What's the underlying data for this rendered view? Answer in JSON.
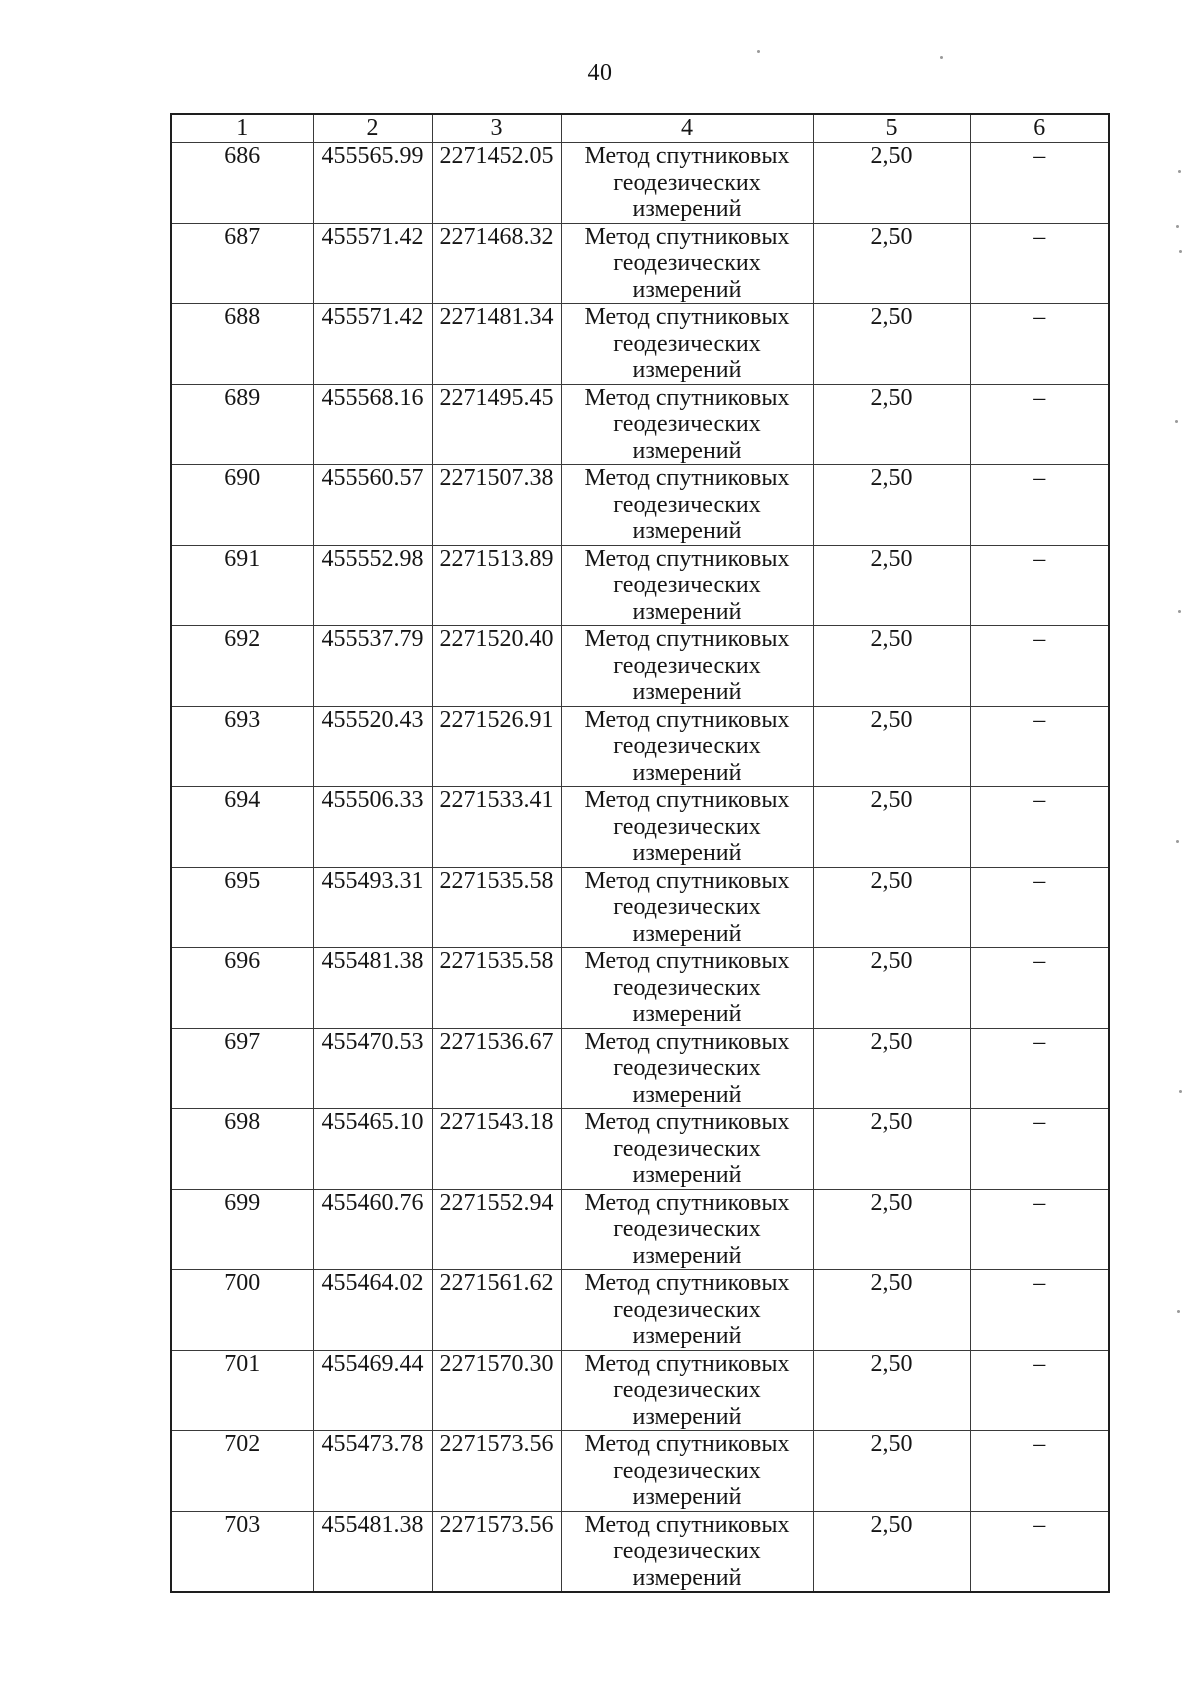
{
  "page": {
    "number": "40"
  },
  "table": {
    "headers": [
      "1",
      "2",
      "3",
      "4",
      "5",
      "6"
    ],
    "method_full": "Метод спутниковых геодезических измерений",
    "method_lines": [
      "Метод спутниковых",
      "геодезических",
      "измерений"
    ],
    "rows": [
      {
        "n": "686",
        "x": "455565.99",
        "y": "2271452.05",
        "accuracy": "2,50",
        "mark": "–"
      },
      {
        "n": "687",
        "x": "455571.42",
        "y": "2271468.32",
        "accuracy": "2,50",
        "mark": "–"
      },
      {
        "n": "688",
        "x": "455571.42",
        "y": "2271481.34",
        "accuracy": "2,50",
        "mark": "–"
      },
      {
        "n": "689",
        "x": "455568.16",
        "y": "2271495.45",
        "accuracy": "2,50",
        "mark": "–"
      },
      {
        "n": "690",
        "x": "455560.57",
        "y": "2271507.38",
        "accuracy": "2,50",
        "mark": "–"
      },
      {
        "n": "691",
        "x": "455552.98",
        "y": "2271513.89",
        "accuracy": "2,50",
        "mark": "–"
      },
      {
        "n": "692",
        "x": "455537.79",
        "y": "2271520.40",
        "accuracy": "2,50",
        "mark": "–"
      },
      {
        "n": "693",
        "x": "455520.43",
        "y": "2271526.91",
        "accuracy": "2,50",
        "mark": "–"
      },
      {
        "n": "694",
        "x": "455506.33",
        "y": "2271533.41",
        "accuracy": "2,50",
        "mark": "–"
      },
      {
        "n": "695",
        "x": "455493.31",
        "y": "2271535.58",
        "accuracy": "2,50",
        "mark": "–"
      },
      {
        "n": "696",
        "x": "455481.38",
        "y": "2271535.58",
        "accuracy": "2,50",
        "mark": "–"
      },
      {
        "n": "697",
        "x": "455470.53",
        "y": "2271536.67",
        "accuracy": "2,50",
        "mark": "–"
      },
      {
        "n": "698",
        "x": "455465.10",
        "y": "2271543.18",
        "accuracy": "2,50",
        "mark": "–"
      },
      {
        "n": "699",
        "x": "455460.76",
        "y": "2271552.94",
        "accuracy": "2,50",
        "mark": "–"
      },
      {
        "n": "700",
        "x": "455464.02",
        "y": "2271561.62",
        "accuracy": "2,50",
        "mark": "–"
      },
      {
        "n": "701",
        "x": "455469.44",
        "y": "2271570.30",
        "accuracy": "2,50",
        "mark": "–"
      },
      {
        "n": "702",
        "x": "455473.78",
        "y": "2271573.56",
        "accuracy": "2,50",
        "mark": "–"
      },
      {
        "n": "703",
        "x": "455481.38",
        "y": "2271573.56",
        "accuracy": "2,50",
        "mark": "–"
      }
    ]
  }
}
